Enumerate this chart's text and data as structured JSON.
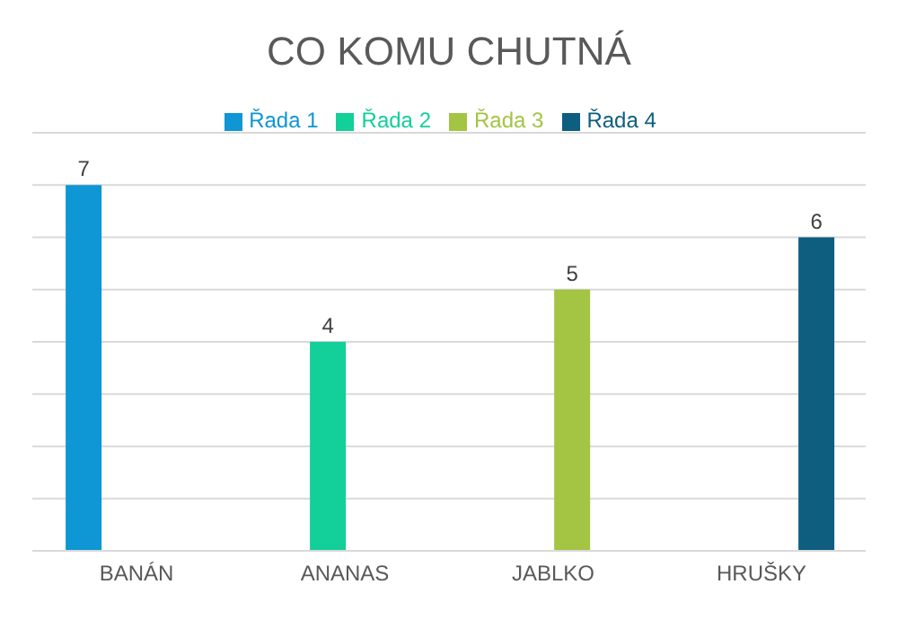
{
  "chart_data": {
    "type": "bar",
    "title": "CO KOMU CHUTNÁ",
    "categories": [
      "BANÁN",
      "ANANAS",
      "JABLKO",
      "HRUŠKY"
    ],
    "series": [
      {
        "name": "Řada 1",
        "color": "#0f96d4",
        "values": [
          7,
          null,
          null,
          null
        ]
      },
      {
        "name": "Řada 2",
        "color": "#13cf9a",
        "values": [
          null,
          4,
          null,
          null
        ]
      },
      {
        "name": "Řada 3",
        "color": "#a4c444",
        "values": [
          null,
          null,
          5,
          null
        ]
      },
      {
        "name": "Řada 4",
        "color": "#0d5e7f",
        "values": [
          null,
          null,
          null,
          6
        ]
      }
    ],
    "ylim": [
      0,
      8
    ],
    "tick_labels": "x",
    "grid": "y",
    "legend": "top",
    "data_labels": true
  }
}
